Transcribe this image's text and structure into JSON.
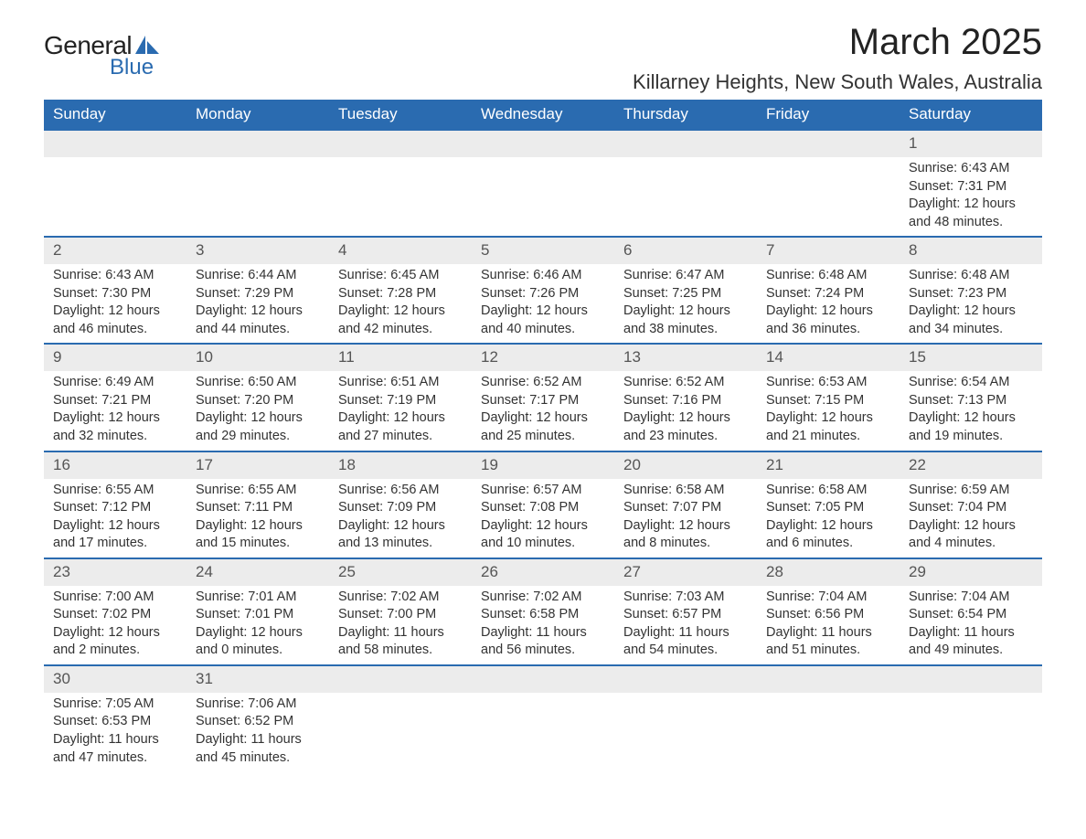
{
  "logo": {
    "general": "General",
    "blue": "Blue",
    "sail_color": "#2a6bb0"
  },
  "title": {
    "month": "March 2025",
    "location": "Killarney Heights, New South Wales, Australia"
  },
  "colors": {
    "header_bg": "#2a6bb0",
    "header_fg": "#ffffff",
    "daynum_bg": "#ececec",
    "border": "#2a6bb0",
    "text": "#333333"
  },
  "weekdays": [
    "Sunday",
    "Monday",
    "Tuesday",
    "Wednesday",
    "Thursday",
    "Friday",
    "Saturday"
  ],
  "weeks": [
    {
      "nums": [
        "",
        "",
        "",
        "",
        "",
        "",
        "1"
      ],
      "details": [
        "",
        "",
        "",
        "",
        "",
        "",
        "Sunrise: 6:43 AM\nSunset: 7:31 PM\nDaylight: 12 hours and 48 minutes."
      ]
    },
    {
      "nums": [
        "2",
        "3",
        "4",
        "5",
        "6",
        "7",
        "8"
      ],
      "details": [
        "Sunrise: 6:43 AM\nSunset: 7:30 PM\nDaylight: 12 hours and 46 minutes.",
        "Sunrise: 6:44 AM\nSunset: 7:29 PM\nDaylight: 12 hours and 44 minutes.",
        "Sunrise: 6:45 AM\nSunset: 7:28 PM\nDaylight: 12 hours and 42 minutes.",
        "Sunrise: 6:46 AM\nSunset: 7:26 PM\nDaylight: 12 hours and 40 minutes.",
        "Sunrise: 6:47 AM\nSunset: 7:25 PM\nDaylight: 12 hours and 38 minutes.",
        "Sunrise: 6:48 AM\nSunset: 7:24 PM\nDaylight: 12 hours and 36 minutes.",
        "Sunrise: 6:48 AM\nSunset: 7:23 PM\nDaylight: 12 hours and 34 minutes."
      ]
    },
    {
      "nums": [
        "9",
        "10",
        "11",
        "12",
        "13",
        "14",
        "15"
      ],
      "details": [
        "Sunrise: 6:49 AM\nSunset: 7:21 PM\nDaylight: 12 hours and 32 minutes.",
        "Sunrise: 6:50 AM\nSunset: 7:20 PM\nDaylight: 12 hours and 29 minutes.",
        "Sunrise: 6:51 AM\nSunset: 7:19 PM\nDaylight: 12 hours and 27 minutes.",
        "Sunrise: 6:52 AM\nSunset: 7:17 PM\nDaylight: 12 hours and 25 minutes.",
        "Sunrise: 6:52 AM\nSunset: 7:16 PM\nDaylight: 12 hours and 23 minutes.",
        "Sunrise: 6:53 AM\nSunset: 7:15 PM\nDaylight: 12 hours and 21 minutes.",
        "Sunrise: 6:54 AM\nSunset: 7:13 PM\nDaylight: 12 hours and 19 minutes."
      ]
    },
    {
      "nums": [
        "16",
        "17",
        "18",
        "19",
        "20",
        "21",
        "22"
      ],
      "details": [
        "Sunrise: 6:55 AM\nSunset: 7:12 PM\nDaylight: 12 hours and 17 minutes.",
        "Sunrise: 6:55 AM\nSunset: 7:11 PM\nDaylight: 12 hours and 15 minutes.",
        "Sunrise: 6:56 AM\nSunset: 7:09 PM\nDaylight: 12 hours and 13 minutes.",
        "Sunrise: 6:57 AM\nSunset: 7:08 PM\nDaylight: 12 hours and 10 minutes.",
        "Sunrise: 6:58 AM\nSunset: 7:07 PM\nDaylight: 12 hours and 8 minutes.",
        "Sunrise: 6:58 AM\nSunset: 7:05 PM\nDaylight: 12 hours and 6 minutes.",
        "Sunrise: 6:59 AM\nSunset: 7:04 PM\nDaylight: 12 hours and 4 minutes."
      ]
    },
    {
      "nums": [
        "23",
        "24",
        "25",
        "26",
        "27",
        "28",
        "29"
      ],
      "details": [
        "Sunrise: 7:00 AM\nSunset: 7:02 PM\nDaylight: 12 hours and 2 minutes.",
        "Sunrise: 7:01 AM\nSunset: 7:01 PM\nDaylight: 12 hours and 0 minutes.",
        "Sunrise: 7:02 AM\nSunset: 7:00 PM\nDaylight: 11 hours and 58 minutes.",
        "Sunrise: 7:02 AM\nSunset: 6:58 PM\nDaylight: 11 hours and 56 minutes.",
        "Sunrise: 7:03 AM\nSunset: 6:57 PM\nDaylight: 11 hours and 54 minutes.",
        "Sunrise: 7:04 AM\nSunset: 6:56 PM\nDaylight: 11 hours and 51 minutes.",
        "Sunrise: 7:04 AM\nSunset: 6:54 PM\nDaylight: 11 hours and 49 minutes."
      ]
    },
    {
      "nums": [
        "30",
        "31",
        "",
        "",
        "",
        "",
        ""
      ],
      "details": [
        "Sunrise: 7:05 AM\nSunset: 6:53 PM\nDaylight: 11 hours and 47 minutes.",
        "Sunrise: 7:06 AM\nSunset: 6:52 PM\nDaylight: 11 hours and 45 minutes.",
        "",
        "",
        "",
        "",
        ""
      ]
    }
  ]
}
